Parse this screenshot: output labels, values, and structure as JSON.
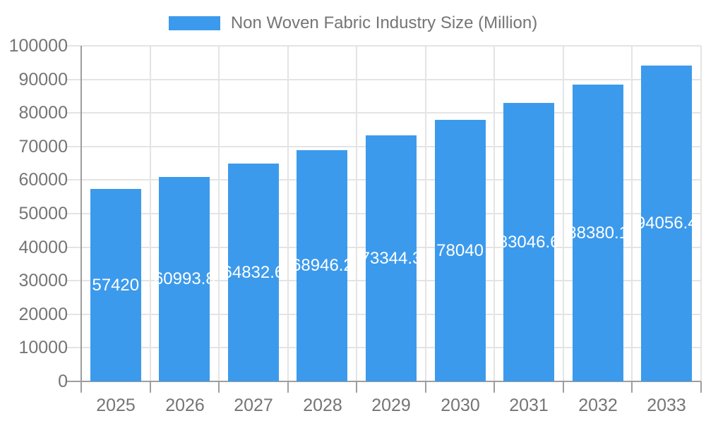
{
  "chart_data": {
    "type": "bar",
    "title": "Non Woven Fabric Industry Size (Million)",
    "categories": [
      "2025",
      "2026",
      "2027",
      "2028",
      "2029",
      "2030",
      "2031",
      "2032",
      "2033"
    ],
    "values": [
      57420,
      60993.8,
      64832.6,
      68946.2,
      73344.3,
      78040,
      83046.6,
      88380.1,
      94056.4
    ],
    "xlabel": "",
    "ylabel": "",
    "ylim": [
      0,
      100000
    ],
    "ytick_step": 10000,
    "grid": true,
    "legend_position": "top",
    "bar_labels_position": "inside-middle",
    "colors": {
      "bar": "#3C9AEC",
      "axis_line": "#9E9E9E",
      "gridline": "#E4E4E4",
      "axis_text": "#757575",
      "bar_label_text": "#FFFFFF",
      "background": "#FFFFFF"
    }
  }
}
